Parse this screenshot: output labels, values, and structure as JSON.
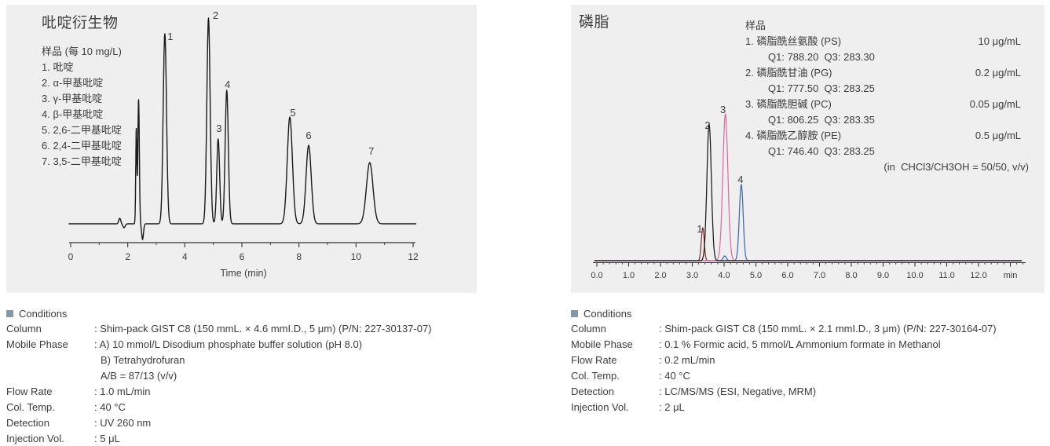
{
  "colors": {
    "panel-bg": "#efefef",
    "text": "#3d3d3d",
    "bullet": "#8298a8",
    "axis": "#333333"
  },
  "left_panel": {
    "title": "吡啶衍生物",
    "sample_header": "样品 (每 10 mg/L)",
    "sample_items": [
      "1. 吡啶",
      "2. α-甲基吡啶",
      "3. γ-甲基吡啶",
      "4. β-甲基吡啶",
      "5. 2,6-二甲基吡啶",
      "6. 2,4-二甲基吡啶",
      "7. 3,5-二甲基吡啶"
    ]
  },
  "right_panel": {
    "title": "磷脂",
    "sample_header": "样品",
    "samples": [
      {
        "name": "1. 磷脂酰丝氨酸 (PS)",
        "conc": "10 μg/mL",
        "transition": "Q1: 788.20  Q3: 283.30"
      },
      {
        "name": "2. 磷脂酰甘油 (PG)",
        "conc": "0.2 μg/mL",
        "transition": "Q1: 777.50  Q3: 283.25"
      },
      {
        "name": "3. 磷脂酰胆碱 (PC)",
        "conc": "0.05 μg/mL",
        "transition": "Q1: 806.25  Q3: 283.35"
      },
      {
        "name": "4. 磷脂酰乙醇胺 (PE)",
        "conc": "0.5 μg/mL",
        "transition": "Q1: 746.40  Q3: 283.25"
      }
    ],
    "solvent_note": "(in  CHCl3/CH3OH = 50/50, v/v)"
  },
  "left_conditions": {
    "header": "Conditions",
    "rows": [
      {
        "label": "Column",
        "value": ": Shim-pack GIST C8 (150 mmL. × 4.6 mmI.D., 5 μm) (P/N: 227-30137-07)"
      },
      {
        "label": "Mobile Phase",
        "value": ": A) 10 mmol/L Disodium phosphate buffer solution (pH 8.0)"
      },
      {
        "label": "",
        "value": "B) Tetrahydrofuran"
      },
      {
        "label": "",
        "value": "A/B = 87/13 (v/v)"
      },
      {
        "label": "Flow Rate",
        "value": ": 1.0 mL/min"
      },
      {
        "label": "Col. Temp.",
        "value": ": 40 °C"
      },
      {
        "label": "Detection",
        "value": ": UV 260 nm"
      },
      {
        "label": "Injection Vol.",
        "value": ": 5 μL"
      }
    ]
  },
  "right_conditions": {
    "header": "Conditions",
    "rows": [
      {
        "label": "Column",
        "value": ": Shim-pack GIST C8 (150 mmL. × 2.1 mmI.D., 3 μm) (P/N: 227-30164-07)"
      },
      {
        "label": "Mobile Phase",
        "value": ": 0.1 % Formic acid, 5 mmol/L Ammonium formate in Methanol"
      },
      {
        "label": "Flow Rate",
        "value": ": 0.2 mL/min"
      },
      {
        "label": "Col. Temp.",
        "value": ": 40 °C"
      },
      {
        "label": "Detection",
        "value": ": LC/MS/MS (ESI, Negative, MRM)"
      },
      {
        "label": "Injection Vol.",
        "value": ": 2 μL"
      }
    ]
  },
  "chart_data": [
    {
      "id": "pyridine-derivatives",
      "type": "line",
      "title": "吡啶衍生物",
      "xlabel": "Time (min)",
      "xlim": [
        0,
        12
      ],
      "x_major_step": 2,
      "x_minor_step": 1,
      "x_tick_decimals": 0,
      "grid": false,
      "legend": "none",
      "series": [
        {
          "name": "UV 260 nm signal",
          "color": "#1a1a1a",
          "peaks": [
            {
              "label": "1",
              "compound": "吡啶",
              "time": 3.3,
              "intensity": 242,
              "sigma": 0.058,
              "label_dx": 7,
              "label_dy": 13
            },
            {
              "label": "2",
              "compound": "α-甲基吡啶",
              "time": 4.83,
              "intensity": 262,
              "sigma": 0.058,
              "label_dx": 9,
              "label_dy": 6
            },
            {
              "label": "3",
              "compound": "γ-甲基吡啶",
              "time": 5.17,
              "intensity": 108,
              "sigma": 0.05,
              "label_dx": 1,
              "label_dy": -4
            },
            {
              "label": "4",
              "compound": "β-甲基吡啶",
              "time": 5.47,
              "intensity": 170,
              "sigma": 0.055,
              "label_dx": 1,
              "label_dy": 2
            },
            {
              "label": "5",
              "compound": "2,6-二甲基吡啶",
              "time": 7.68,
              "intensity": 136,
              "sigma": 0.09,
              "label_dx": 4,
              "label_dy": 4
            },
            {
              "label": "6",
              "compound": "2,4-二甲基吡啶",
              "time": 8.34,
              "intensity": 100,
              "sigma": 0.09,
              "label_dx": 0,
              "label_dy": -3
            },
            {
              "label": "7",
              "compound": "3,5-二甲基吡啶",
              "time": 10.48,
              "intensity": 78,
              "sigma": 0.115,
              "label_dx": 2,
              "label_dy": -5
            }
          ],
          "artifacts": [
            {
              "time": 1.72,
              "intensity": 7,
              "sigma": 0.035
            },
            {
              "time": 1.87,
              "intensity": -5,
              "sigma": 0.04
            },
            {
              "time": 2.3,
              "intensity": 120,
              "sigma": 0.02
            },
            {
              "time": 2.38,
              "intensity": 158,
              "sigma": 0.026
            },
            {
              "time": 2.52,
              "intensity": -20,
              "sigma": 0.032
            }
          ]
        }
      ]
    },
    {
      "id": "phospholipids",
      "type": "line",
      "title": "磷脂",
      "x_unit_label": "min",
      "xlim": [
        0,
        13
      ],
      "x_major_step": 1,
      "x_minor_step": 0.2,
      "x_tick_decimals": 1,
      "x_label_max": 12,
      "grid": false,
      "legend": "none",
      "series": [
        {
          "name": "PS 磷脂酰丝氨酸",
          "color": "#8b2e31",
          "peaks": [
            {
              "label": "1",
              "time": 3.33,
              "intensity": 42,
              "sigma": 0.045,
              "label_dx": -4,
              "label_dy": 11
            }
          ]
        },
        {
          "name": "PE 磷脂酰乙醇胺",
          "color": "#4169b2",
          "peaks": [
            {
              "label": "4",
              "time": 4.54,
              "intensity": 97,
              "sigma": 0.06,
              "label_dx": -1,
              "label_dy": 3
            },
            {
              "time": 4.02,
              "intensity": 6,
              "sigma": 0.05
            }
          ]
        },
        {
          "name": "PC 磷脂酰胆碱",
          "color": "#de6ba3",
          "peaks": [
            {
              "label": "3",
              "time": 4.04,
              "intensity": 187,
              "sigma": 0.08,
              "label_dx": -3,
              "label_dy": 4
            }
          ]
        },
        {
          "name": "PG 磷脂酰甘油",
          "color": "#1a1a1a",
          "peaks": [
            {
              "label": "2",
              "time": 3.53,
              "intensity": 174,
              "sigma": 0.07,
              "label_dx": -2,
              "label_dy": 11
            }
          ]
        }
      ]
    }
  ]
}
